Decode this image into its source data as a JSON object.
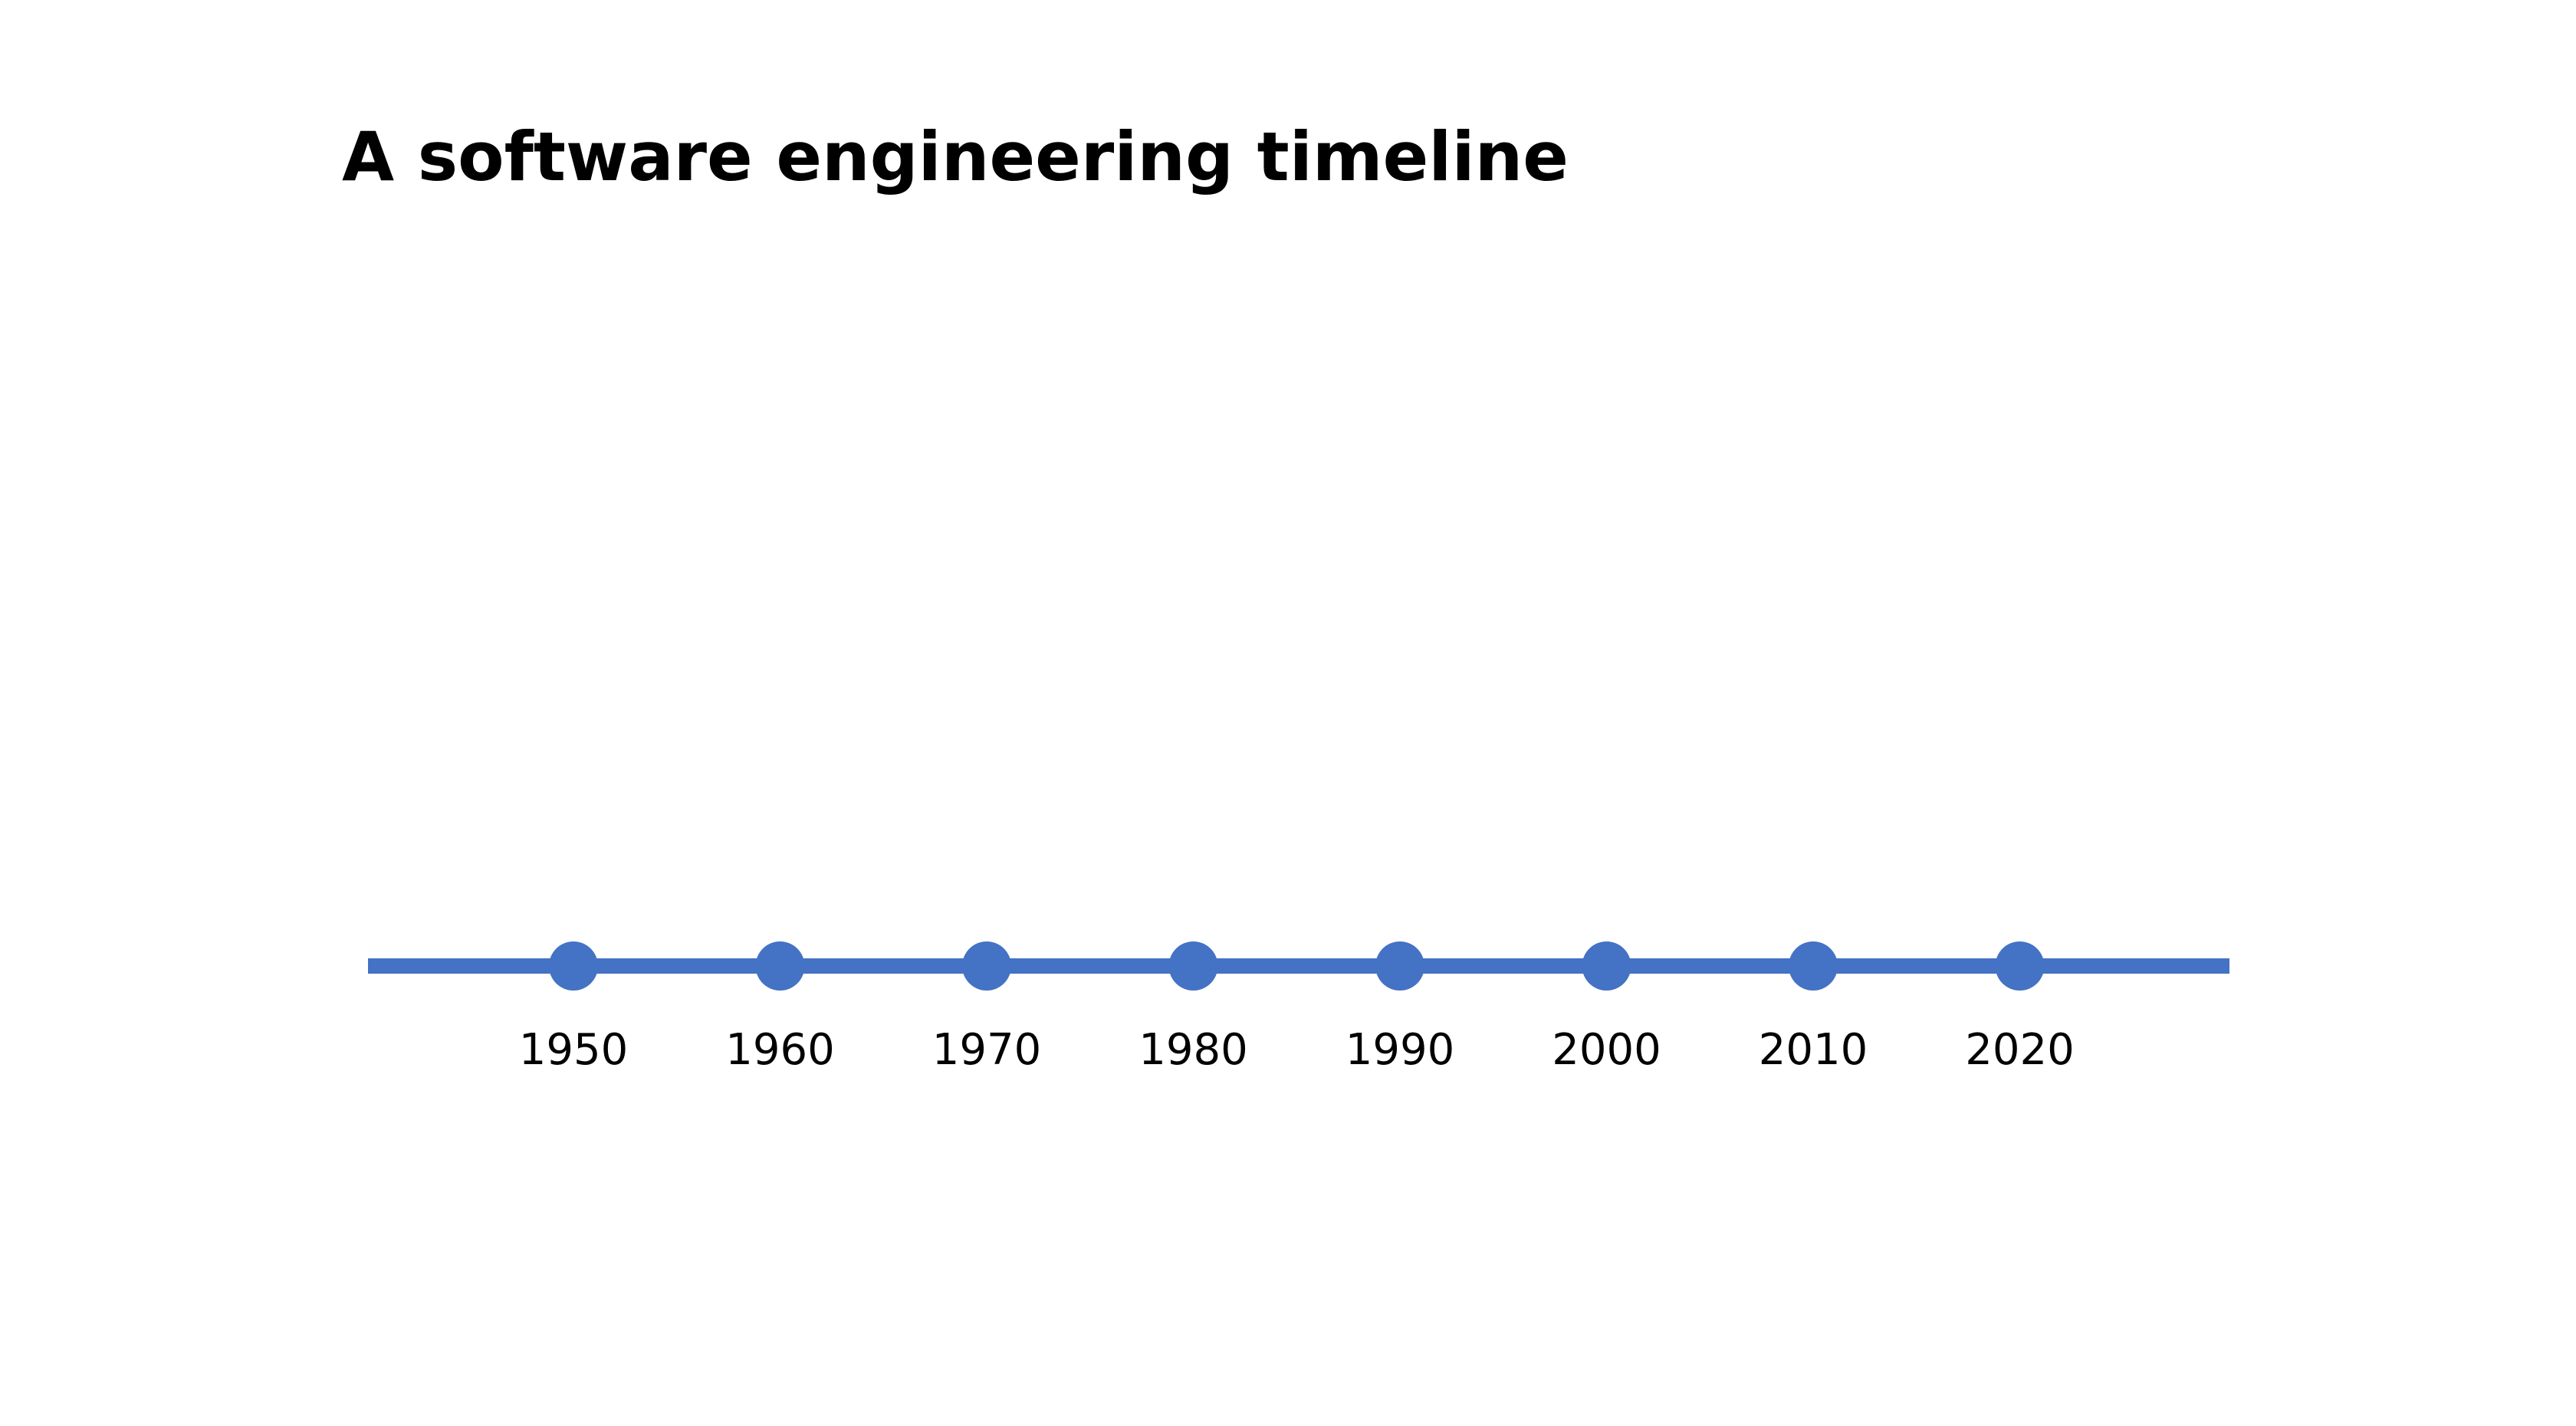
{
  "slide": {
    "title": "A software engineering timeline"
  },
  "timeline": {
    "color": "#4472C4",
    "years": [
      "1950",
      "1960",
      "1970",
      "1980",
      "1990",
      "2000",
      "2010",
      "2020"
    ]
  }
}
